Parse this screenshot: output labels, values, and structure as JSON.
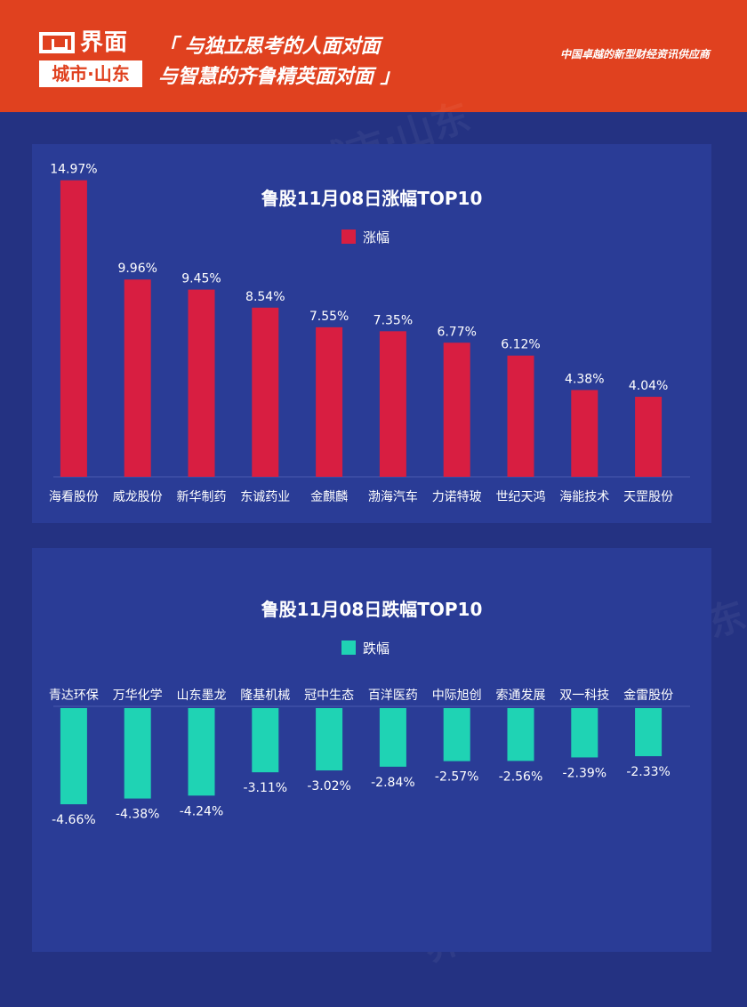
{
  "header": {
    "logo_text": "界面",
    "logo_sub": "城市·山东",
    "slogan_line1": "「 与独立思考的人面对面",
    "slogan_line2": "与智慧的齐鲁精英面对面 」",
    "tagline": "中国卓越的新型财经资讯供应商",
    "watermark": "界面 城市·山东",
    "colors": {
      "header_bg": "#e0411f",
      "page_bg": "#243282",
      "panel_bg": "#2a3c96"
    }
  },
  "chart_data": [
    {
      "type": "bar",
      "title": "鲁股11月08日涨幅TOP10",
      "categories": [
        "海看股份",
        "威龙股份",
        "新华制药",
        "东诚药业",
        "金麒麟",
        "渤海汽车",
        "力诺特玻",
        "世纪天鸿",
        "海能技术",
        "天罡股份"
      ],
      "series": [
        {
          "name": "涨幅",
          "values": [
            14.97,
            9.96,
            9.45,
            8.54,
            7.55,
            7.35,
            6.77,
            6.12,
            4.38,
            4.04
          ],
          "color": "#d81e41"
        }
      ],
      "labels": [
        "14.97%",
        "9.96%",
        "9.45%",
        "8.54%",
        "7.55%",
        "7.35%",
        "6.77%",
        "6.12%",
        "4.38%",
        "4.04%"
      ],
      "ylim": [
        0,
        15
      ],
      "legend": "top-center",
      "grid": false
    },
    {
      "type": "bar",
      "title": "鲁股11月08日跌幅TOP10",
      "categories": [
        "青达环保",
        "万华化学",
        "山东墨龙",
        "隆基机械",
        "冠中生态",
        "百洋医药",
        "中际旭创",
        "索通发展",
        "双一科技",
        "金雷股份"
      ],
      "series": [
        {
          "name": "跌幅",
          "values": [
            -4.66,
            -4.38,
            -4.24,
            -3.11,
            -3.02,
            -2.84,
            -2.57,
            -2.56,
            -2.39,
            -2.33
          ],
          "color": "#1fd3b4"
        }
      ],
      "labels": [
        "-4.66%",
        "-4.38%",
        "-4.24%",
        "-3.11%",
        "-3.02%",
        "-2.84%",
        "-2.57%",
        "-2.56%",
        "-2.39%",
        "-2.33%"
      ],
      "ylim": [
        -5,
        0
      ],
      "legend": "top-center",
      "grid": false
    }
  ]
}
